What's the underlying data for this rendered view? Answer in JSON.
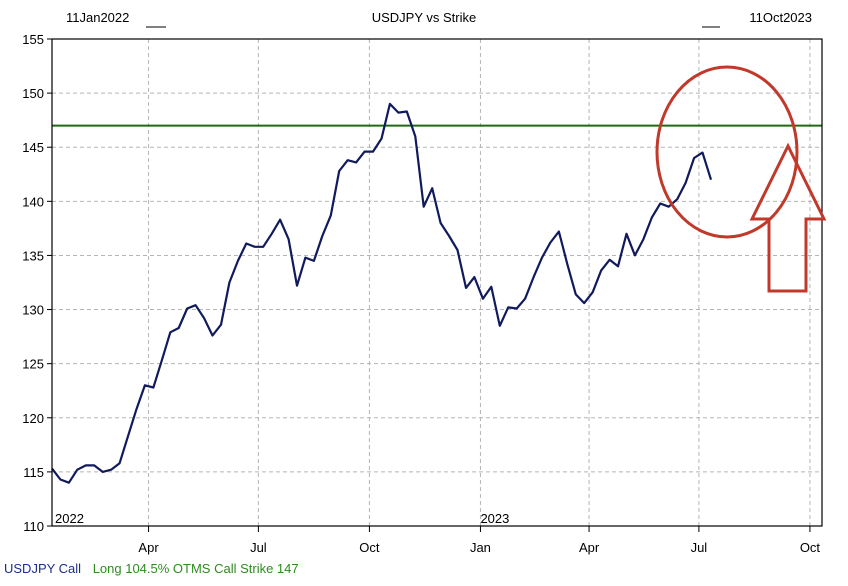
{
  "chart_data": {
    "type": "line",
    "title": "USDJPY vs Strike",
    "date_start_label": "11Jan2022",
    "date_end_label": "11Oct2023",
    "x_range": [
      "2022-01-11",
      "2023-10-11"
    ],
    "ylim": [
      110,
      155
    ],
    "y_ticks": [
      110,
      115,
      120,
      125,
      130,
      135,
      140,
      145,
      150,
      155
    ],
    "x_ticks": [
      {
        "date": "2022-04-01",
        "label": "Apr"
      },
      {
        "date": "2022-07-01",
        "label": "Jul"
      },
      {
        "date": "2022-10-01",
        "label": "Oct"
      },
      {
        "date": "2023-01-01",
        "label": "Jan"
      },
      {
        "date": "2023-04-01",
        "label": "Apr"
      },
      {
        "date": "2023-07-01",
        "label": "Jul"
      },
      {
        "date": "2023-10-01",
        "label": "Oct"
      }
    ],
    "year_labels": [
      {
        "date": "2022-01-11",
        "label": "2022"
      },
      {
        "date": "2023-01-01",
        "label": "2023"
      }
    ],
    "grid": true,
    "colors": {
      "series": "#101a5c",
      "strike": "#1e6b12",
      "annotation": "#c0392b",
      "grid": "#b5b5b5"
    },
    "series": [
      {
        "name": "USDJPY Call",
        "points": [
          [
            "2022-01-11",
            115.3
          ],
          [
            "2022-01-18",
            114.3
          ],
          [
            "2022-01-25",
            114.0
          ],
          [
            "2022-02-01",
            115.2
          ],
          [
            "2022-02-08",
            115.6
          ],
          [
            "2022-02-15",
            115.6
          ],
          [
            "2022-02-22",
            115.0
          ],
          [
            "2022-03-01",
            115.2
          ],
          [
            "2022-03-08",
            115.8
          ],
          [
            "2022-03-15",
            118.3
          ],
          [
            "2022-03-22",
            120.8
          ],
          [
            "2022-03-29",
            123.0
          ],
          [
            "2022-04-05",
            122.8
          ],
          [
            "2022-04-12",
            125.3
          ],
          [
            "2022-04-19",
            127.9
          ],
          [
            "2022-04-26",
            128.3
          ],
          [
            "2022-05-03",
            130.1
          ],
          [
            "2022-05-10",
            130.4
          ],
          [
            "2022-05-17",
            129.2
          ],
          [
            "2022-05-24",
            127.6
          ],
          [
            "2022-05-31",
            128.6
          ],
          [
            "2022-06-07",
            132.5
          ],
          [
            "2022-06-14",
            134.5
          ],
          [
            "2022-06-21",
            136.1
          ],
          [
            "2022-06-28",
            135.8
          ],
          [
            "2022-07-05",
            135.8
          ],
          [
            "2022-07-12",
            137.0
          ],
          [
            "2022-07-19",
            138.3
          ],
          [
            "2022-07-26",
            136.5
          ],
          [
            "2022-08-02",
            132.2
          ],
          [
            "2022-08-09",
            134.8
          ],
          [
            "2022-08-16",
            134.5
          ],
          [
            "2022-08-23",
            136.8
          ],
          [
            "2022-08-30",
            138.7
          ],
          [
            "2022-09-06",
            142.8
          ],
          [
            "2022-09-13",
            143.8
          ],
          [
            "2022-09-20",
            143.6
          ],
          [
            "2022-09-27",
            144.6
          ],
          [
            "2022-10-04",
            144.6
          ],
          [
            "2022-10-11",
            145.8
          ],
          [
            "2022-10-18",
            149.0
          ],
          [
            "2022-10-25",
            148.2
          ],
          [
            "2022-11-01",
            148.3
          ],
          [
            "2022-11-08",
            146.0
          ],
          [
            "2022-11-15",
            139.5
          ],
          [
            "2022-11-22",
            141.2
          ],
          [
            "2022-11-29",
            138.0
          ],
          [
            "2022-12-06",
            136.8
          ],
          [
            "2022-12-13",
            135.5
          ],
          [
            "2022-12-20",
            132.0
          ],
          [
            "2022-12-27",
            133.0
          ],
          [
            "2023-01-03",
            131.0
          ],
          [
            "2023-01-10",
            132.1
          ],
          [
            "2023-01-17",
            128.5
          ],
          [
            "2023-01-24",
            130.2
          ],
          [
            "2023-01-31",
            130.1
          ],
          [
            "2023-02-07",
            131.0
          ],
          [
            "2023-02-14",
            133.0
          ],
          [
            "2023-02-21",
            134.8
          ],
          [
            "2023-02-28",
            136.2
          ],
          [
            "2023-03-07",
            137.2
          ],
          [
            "2023-03-14",
            134.2
          ],
          [
            "2023-03-21",
            131.4
          ],
          [
            "2023-03-28",
            130.6
          ],
          [
            "2023-04-04",
            131.6
          ],
          [
            "2023-04-11",
            133.6
          ],
          [
            "2023-04-18",
            134.6
          ],
          [
            "2023-04-25",
            134.0
          ],
          [
            "2023-05-02",
            137.0
          ],
          [
            "2023-05-09",
            135.0
          ],
          [
            "2023-05-16",
            136.5
          ],
          [
            "2023-05-23",
            138.5
          ],
          [
            "2023-05-30",
            139.8
          ],
          [
            "2023-06-06",
            139.5
          ],
          [
            "2023-06-13",
            140.2
          ],
          [
            "2023-06-20",
            141.7
          ],
          [
            "2023-06-27",
            144.0
          ],
          [
            "2023-07-04",
            144.5
          ],
          [
            "2023-07-11",
            142.0
          ]
        ]
      }
    ],
    "strike": {
      "name": "Long 104.5% OTMS Call Strike 147",
      "value": 147
    }
  },
  "footer": {
    "series_label": "USDJPY Call",
    "strike_label": "Long 104.5% OTMS Call Strike 147"
  }
}
